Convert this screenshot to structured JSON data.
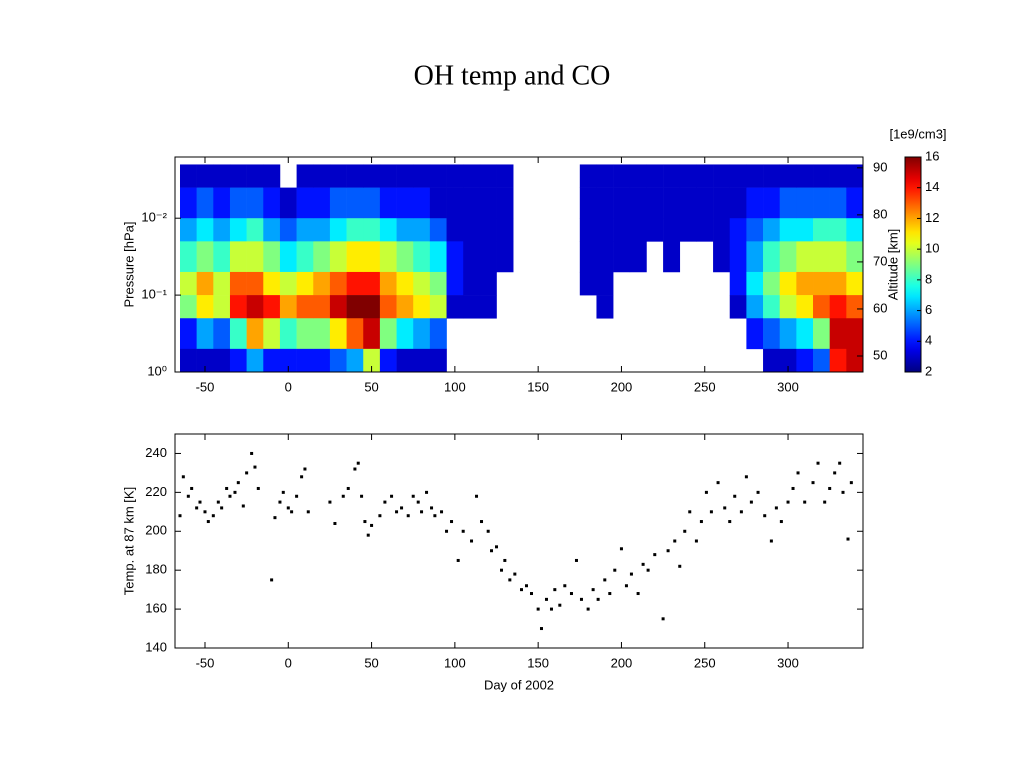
{
  "title": "OH temp and CO",
  "chart_data": [
    {
      "type": "heatmap",
      "colormap": "jet",
      "ylabel": "Pressure [hPa]",
      "y2label": "Altitude [km]",
      "x_bins": [
        -65,
        -55,
        -45,
        -35,
        -25,
        -15,
        -5,
        5,
        15,
        25,
        35,
        45,
        55,
        65,
        75,
        85,
        95,
        105,
        115,
        125,
        135,
        145,
        155,
        165,
        175,
        185,
        195,
        205,
        215,
        225,
        235,
        245,
        255,
        265,
        275,
        285,
        295,
        305,
        315,
        325,
        335,
        345
      ],
      "y_bins": [
        0.002,
        0.004,
        0.01,
        0.02,
        0.05,
        0.1,
        0.2,
        0.5,
        1
      ],
      "values": [
        [
          3,
          4,
          6,
          8,
          10,
          9,
          4,
          3
        ],
        [
          3,
          5,
          7,
          9,
          12,
          11,
          6,
          3
        ],
        [
          3,
          4,
          6,
          8,
          10,
          10,
          5,
          3
        ],
        [
          3,
          5,
          7,
          10,
          13,
          14,
          8,
          4
        ],
        [
          3,
          5,
          8,
          10,
          13,
          15,
          12,
          6
        ],
        [
          3,
          4,
          6,
          9,
          11,
          14,
          10,
          4
        ],
        [
          null,
          3,
          5,
          7,
          10,
          12,
          8,
          4
        ],
        [
          3,
          4,
          6,
          8,
          11,
          13,
          9,
          4
        ],
        [
          3,
          4,
          6,
          9,
          12,
          13,
          9,
          4
        ],
        [
          3,
          5,
          7,
          10,
          13,
          15,
          11,
          5
        ],
        [
          3,
          5,
          8,
          11,
          14,
          16,
          13,
          6
        ],
        [
          3,
          5,
          8,
          11,
          14,
          16,
          15,
          10
        ],
        [
          3,
          4,
          7,
          10,
          12,
          13,
          9,
          4
        ],
        [
          3,
          4,
          6,
          9,
          11,
          12,
          7,
          3
        ],
        [
          3,
          4,
          6,
          8,
          10,
          11,
          6,
          3
        ],
        [
          3,
          3,
          5,
          7,
          9,
          10,
          5,
          3
        ],
        [
          3,
          3,
          3,
          4,
          4,
          3,
          null,
          null
        ],
        [
          3,
          3,
          3,
          3,
          3,
          3,
          null,
          null
        ],
        [
          3,
          3,
          3,
          3,
          3,
          3,
          null,
          null
        ],
        [
          3,
          3,
          3,
          3,
          null,
          null,
          null,
          null
        ],
        [
          null,
          null,
          null,
          null,
          null,
          null,
          null,
          null
        ],
        [
          null,
          null,
          null,
          null,
          null,
          null,
          null,
          null
        ],
        [
          null,
          null,
          null,
          null,
          null,
          null,
          null,
          null
        ],
        [
          null,
          null,
          null,
          null,
          null,
          null,
          null,
          null
        ],
        [
          3,
          3,
          3,
          3,
          3,
          null,
          null,
          null
        ],
        [
          3,
          3,
          3,
          3,
          3,
          3,
          null,
          null
        ],
        [
          3,
          3,
          3,
          3,
          null,
          null,
          null,
          null
        ],
        [
          3,
          3,
          3,
          3,
          null,
          null,
          null,
          null
        ],
        [
          3,
          3,
          3,
          null,
          null,
          null,
          null,
          null
        ],
        [
          3,
          3,
          3,
          3,
          null,
          null,
          null,
          null
        ],
        [
          3,
          3,
          3,
          null,
          null,
          null,
          null,
          null
        ],
        [
          3,
          3,
          3,
          null,
          null,
          null,
          null,
          null
        ],
        [
          3,
          3,
          3,
          3,
          null,
          null,
          null,
          null
        ],
        [
          3,
          3,
          4,
          4,
          4,
          3,
          null,
          null
        ],
        [
          3,
          4,
          5,
          6,
          7,
          6,
          4,
          null
        ],
        [
          3,
          4,
          6,
          8,
          9,
          8,
          5,
          3
        ],
        [
          3,
          5,
          7,
          9,
          11,
          10,
          6,
          3
        ],
        [
          3,
          5,
          7,
          10,
          12,
          11,
          7,
          4
        ],
        [
          3,
          5,
          8,
          10,
          12,
          13,
          9,
          5
        ],
        [
          3,
          5,
          8,
          10,
          12,
          14,
          15,
          14
        ],
        [
          3,
          4,
          7,
          9,
          11,
          13,
          15,
          15
        ]
      ],
      "xlim": [
        -68,
        345
      ],
      "xticks": [
        -50,
        0,
        50,
        100,
        150,
        200,
        250,
        300
      ],
      "ylim": [
        0.0016,
        1
      ],
      "yscale": "log",
      "y_reversed": true,
      "yticks": [
        {
          "value": 0.01,
          "label": "10⁻²"
        },
        {
          "value": 0.1,
          "label": "10⁻¹"
        },
        {
          "value": 1,
          "label": "10⁰"
        }
      ],
      "y2lim": [
        46.6,
        92.3
      ],
      "y2ticks": [
        50,
        60,
        70,
        80,
        90
      ],
      "colorbar": {
        "label": "[1e9/cm3]",
        "clim": [
          2,
          16
        ],
        "ticks": [
          2,
          4,
          6,
          8,
          10,
          12,
          14,
          16
        ]
      }
    },
    {
      "type": "scatter",
      "color": "#000000",
      "xlabel": "Day of 2002",
      "ylabel": "Temp. at 87 km [K]",
      "x": [
        -65,
        -63,
        -60,
        -58,
        -55,
        -53,
        -50,
        -48,
        -45,
        -42,
        -40,
        -37,
        -35,
        -32,
        -30,
        -27,
        -25,
        -22,
        -20,
        -18,
        -10,
        -8,
        -5,
        -3,
        0,
        2,
        5,
        8,
        10,
        12,
        25,
        28,
        33,
        36,
        40,
        42,
        44,
        46,
        48,
        50,
        55,
        58,
        62,
        65,
        68,
        72,
        75,
        78,
        80,
        83,
        86,
        88,
        92,
        95,
        98,
        102,
        105,
        110,
        113,
        116,
        120,
        122,
        125,
        128,
        130,
        133,
        136,
        140,
        143,
        146,
        150,
        152,
        155,
        158,
        160,
        163,
        166,
        170,
        173,
        176,
        180,
        183,
        186,
        190,
        193,
        196,
        200,
        203,
        206,
        210,
        213,
        216,
        220,
        225,
        228,
        232,
        235,
        238,
        241,
        245,
        248,
        251,
        254,
        258,
        262,
        265,
        268,
        272,
        275,
        278,
        282,
        286,
        290,
        293,
        296,
        300,
        303,
        306,
        310,
        315,
        318,
        322,
        325,
        328,
        331,
        333,
        336,
        338
      ],
      "values": [
        208,
        228,
        218,
        222,
        212,
        215,
        210,
        205,
        208,
        215,
        212,
        222,
        218,
        220,
        225,
        213,
        230,
        240,
        233,
        222,
        175,
        207,
        215,
        220,
        212,
        210,
        218,
        228,
        232,
        210,
        215,
        204,
        218,
        222,
        232,
        235,
        218,
        205,
        198,
        203,
        208,
        215,
        218,
        210,
        212,
        208,
        218,
        215,
        210,
        220,
        212,
        208,
        210,
        200,
        205,
        185,
        200,
        195,
        218,
        205,
        200,
        190,
        192,
        180,
        185,
        175,
        178,
        170,
        172,
        168,
        160,
        150,
        165,
        160,
        170,
        162,
        172,
        168,
        185,
        165,
        160,
        170,
        165,
        175,
        168,
        180,
        191,
        172,
        178,
        168,
        183,
        180,
        188,
        155,
        190,
        195,
        182,
        200,
        210,
        195,
        205,
        220,
        210,
        225,
        212,
        205,
        218,
        210,
        228,
        215,
        220,
        208,
        195,
        212,
        205,
        215,
        222,
        230,
        215,
        225,
        235,
        215,
        222,
        230,
        235,
        220,
        196,
        225
      ],
      "xlim": [
        -68,
        345
      ],
      "xticks": [
        -50,
        0,
        50,
        100,
        150,
        200,
        250,
        300
      ],
      "ylim": [
        140,
        250
      ],
      "yticks": [
        140,
        160,
        180,
        200,
        220,
        240
      ]
    }
  ]
}
